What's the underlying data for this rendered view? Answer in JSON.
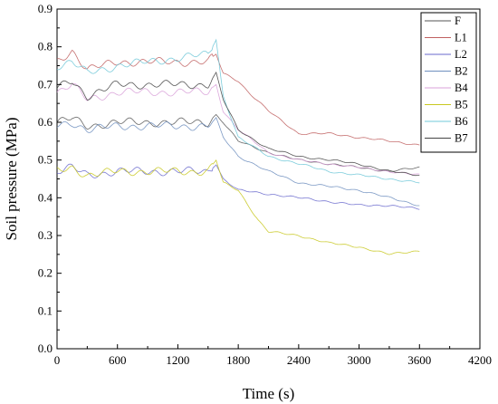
{
  "chart_data": {
    "type": "line",
    "title": "",
    "xlabel": "Time (s)",
    "ylabel": "Soil pressure (MPa)",
    "xlim": [
      0,
      4200
    ],
    "ylim": [
      0.0,
      0.9
    ],
    "x_ticks": [
      "0",
      "600",
      "1200",
      "1800",
      "2400",
      "3000",
      "3600",
      "4200"
    ],
    "y_ticks": [
      "0.0",
      "0.1",
      "0.2",
      "0.3",
      "0.4",
      "0.5",
      "0.6",
      "0.7",
      "0.8",
      "0.9"
    ],
    "grid": false,
    "legend_position": "top-right",
    "series": [
      {
        "name": "F",
        "color": "#555555",
        "x": [
          0,
          150,
          300,
          600,
          900,
          1200,
          1500,
          1580,
          1650,
          1800,
          2100,
          2400,
          2700,
          3000,
          3300,
          3600
        ],
        "y": [
          0.6,
          0.61,
          0.59,
          0.6,
          0.6,
          0.6,
          0.6,
          0.62,
          0.6,
          0.55,
          0.52,
          0.5,
          0.49,
          0.48,
          0.47,
          0.48
        ]
      },
      {
        "name": "L1",
        "color": "#c06060",
        "x": [
          0,
          150,
          300,
          600,
          900,
          1200,
          1500,
          1580,
          1650,
          1800,
          1900,
          2100,
          2400,
          2700,
          3000,
          3300,
          3600
        ],
        "y": [
          0.76,
          0.79,
          0.74,
          0.76,
          0.76,
          0.76,
          0.76,
          0.78,
          0.73,
          0.71,
          0.68,
          0.63,
          0.57,
          0.57,
          0.56,
          0.55,
          0.54
        ]
      },
      {
        "name": "L2",
        "color": "#6a6acd",
        "x": [
          0,
          150,
          300,
          600,
          900,
          1200,
          1500,
          1580,
          1650,
          1800,
          2100,
          2400,
          2700,
          3000,
          3300,
          3600
        ],
        "y": [
          0.47,
          0.48,
          0.46,
          0.47,
          0.47,
          0.47,
          0.47,
          0.49,
          0.45,
          0.42,
          0.41,
          0.4,
          0.39,
          0.38,
          0.38,
          0.37
        ]
      },
      {
        "name": "B2",
        "color": "#6f8fbf",
        "x": [
          0,
          150,
          300,
          600,
          900,
          1200,
          1500,
          1580,
          1650,
          1800,
          2100,
          2400,
          2700,
          3000,
          3300,
          3600
        ],
        "y": [
          0.59,
          0.6,
          0.58,
          0.59,
          0.59,
          0.59,
          0.59,
          0.61,
          0.56,
          0.51,
          0.47,
          0.44,
          0.43,
          0.42,
          0.4,
          0.38
        ]
      },
      {
        "name": "B4",
        "color": "#d8a0d8",
        "x": [
          0,
          150,
          300,
          600,
          900,
          1200,
          1500,
          1580,
          1650,
          1800,
          2100,
          2400,
          2700,
          3000,
          3300,
          3600
        ],
        "y": [
          0.68,
          0.7,
          0.66,
          0.68,
          0.68,
          0.68,
          0.68,
          0.7,
          0.63,
          0.58,
          0.52,
          0.5,
          0.49,
          0.48,
          0.47,
          0.46
        ]
      },
      {
        "name": "B5",
        "color": "#c8c820",
        "x": [
          0,
          150,
          300,
          600,
          900,
          1200,
          1500,
          1580,
          1650,
          1800,
          2000,
          2100,
          2400,
          2700,
          3000,
          3300,
          3600
        ],
        "y": [
          0.47,
          0.48,
          0.46,
          0.47,
          0.47,
          0.47,
          0.47,
          0.5,
          0.44,
          0.42,
          0.34,
          0.31,
          0.3,
          0.28,
          0.27,
          0.25,
          0.26
        ]
      },
      {
        "name": "B6",
        "color": "#70c8d8",
        "x": [
          0,
          150,
          300,
          600,
          900,
          1200,
          1500,
          1580,
          1650,
          1800,
          2100,
          2400,
          2700,
          3000,
          3300,
          3600
        ],
        "y": [
          0.75,
          0.76,
          0.73,
          0.75,
          0.76,
          0.77,
          0.78,
          0.82,
          0.67,
          0.56,
          0.51,
          0.49,
          0.47,
          0.46,
          0.45,
          0.44
        ]
      },
      {
        "name": "B7",
        "color": "#444444",
        "x": [
          0,
          150,
          300,
          600,
          900,
          1200,
          1500,
          1580,
          1650,
          1800,
          2100,
          2400,
          2700,
          3000,
          3300,
          3600
        ],
        "y": [
          0.69,
          0.71,
          0.67,
          0.7,
          0.7,
          0.7,
          0.7,
          0.73,
          0.66,
          0.58,
          0.53,
          0.51,
          0.5,
          0.49,
          0.47,
          0.46
        ]
      }
    ]
  }
}
